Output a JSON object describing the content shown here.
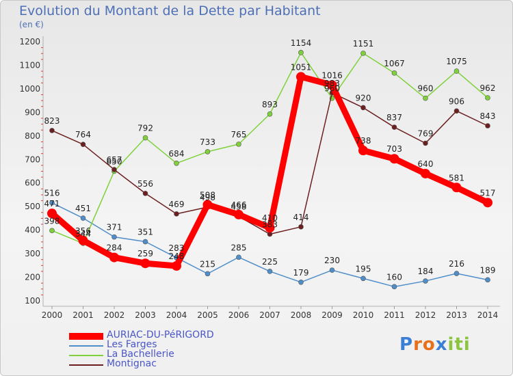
{
  "title": "Evolution du Montant de la Dette par Habitant",
  "unit": "(en €)",
  "logo": {
    "text": "Proxiti",
    "letters": [
      "P",
      "r",
      "o",
      "x",
      "i",
      "t",
      "i"
    ],
    "colors": [
      "#3a7fd5",
      "#e8701a",
      "#e8701a",
      "#3a7fd5",
      "#8bc43f",
      "#8bc43f",
      "#8bc43f"
    ]
  },
  "chart_data": {
    "type": "line",
    "title": "Evolution du Montant de la Dette par Habitant",
    "ylabel": "(en €)",
    "xlabel": "",
    "ylim": [
      100,
      1200
    ],
    "grid": false,
    "legend_placement": "bottom-left",
    "x": [
      "2000",
      "2001",
      "2002",
      "2003",
      "2004",
      "2005",
      "2006",
      "2007",
      "2008",
      "2009",
      "2010",
      "2011",
      "2012",
      "2013",
      "2014"
    ],
    "y_ticks": [
      "100",
      "200",
      "300",
      "400",
      "500",
      "600",
      "700",
      "800",
      "900",
      "1000",
      "1100",
      "1200"
    ],
    "series": [
      {
        "name": "AURIAC-DU-PéRIGORD",
        "color": "#ff0000",
        "values": [
          471,
          356,
          284,
          259,
          248,
          508,
          466,
          410,
          1051,
          1016,
          738,
          703,
          640,
          581,
          517
        ]
      },
      {
        "name": "Les Farges",
        "color": "#4f8ec9",
        "values": [
          516,
          451,
          371,
          351,
          283,
          215,
          285,
          225,
          179,
          230,
          195,
          160,
          184,
          216,
          189
        ]
      },
      {
        "name": "La Bachellerie",
        "color": "#7ed13a",
        "values": [
          398,
          344,
          650,
          792,
          684,
          733,
          765,
          893,
          1154,
          960,
          1151,
          1067,
          960,
          1075,
          962
        ]
      },
      {
        "name": "Montignac",
        "color": "#6b1f1f",
        "values": [
          823,
          764,
          657,
          556,
          469,
          498,
          458,
          383,
          414,
          983,
          920,
          837,
          769,
          906,
          843
        ]
      }
    ]
  }
}
